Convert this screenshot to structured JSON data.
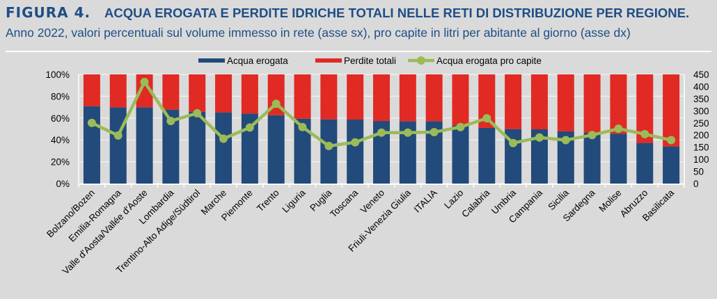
{
  "header": {
    "figure_label": "FIGURA 4.",
    "title": "ACQUA EROGATA E PERDITE IDRICHE TOTALI NELLE RETI DI DISTRIBUZIONE PER REGIONE.",
    "subtitle": "Anno 2022, valori percentuali sul volume immesso in rete (asse sx), pro capite in litri per abitante al giorno (asse dx)"
  },
  "chart_data": {
    "type": "bar",
    "stacked": true,
    "categories": [
      "Bolzano/Bozen",
      "Emilia-Romagna",
      "Valle d'Aosta/Vallée d'Aoste",
      "Lombardia",
      "Trentino-Alto Adige/Südtirol",
      "Marche",
      "Piemonte",
      "Trento",
      "Liguria",
      "Puglia",
      "Toscana",
      "Veneto",
      "Friuli-Venezia Giulia",
      "ITALIA",
      "Lazio",
      "Calabria",
      "Umbria",
      "Campania",
      "Sicilia",
      "Sardegna",
      "Molise",
      "Abruzzo",
      "Basilicata"
    ],
    "series": [
      {
        "name": "Acqua erogata",
        "type": "bar",
        "axis": "left",
        "color": "#224a7a",
        "values": [
          70.9,
          69.9,
          69.9,
          67.7,
          65.8,
          65.2,
          64.1,
          62.6,
          59.4,
          58.8,
          58.6,
          57.3,
          57.1,
          57.1,
          53.3,
          51.0,
          49.9,
          49.7,
          47.8,
          46.7,
          45.6,
          37.2,
          34.0
        ]
      },
      {
        "name": "Perdite totali",
        "type": "bar",
        "axis": "left",
        "color": "#e12a23",
        "values": [
          29.1,
          30.1,
          30.1,
          32.3,
          34.2,
          34.8,
          35.9,
          37.4,
          40.6,
          41.2,
          41.4,
          42.7,
          42.9,
          42.9,
          46.7,
          49.0,
          50.1,
          50.3,
          52.2,
          53.3,
          54.4,
          62.8,
          66.0
        ]
      },
      {
        "name": "Acqua erogata pro capite",
        "type": "line",
        "axis": "right",
        "color": "#9bbb59",
        "values": [
          250,
          198,
          419,
          258,
          290,
          185,
          231,
          329,
          233,
          155,
          170,
          210,
          210,
          212,
          233,
          269,
          167,
          190,
          179,
          200,
          226,
          204,
          179
        ]
      }
    ],
    "y_left": {
      "min": 0,
      "max": 100,
      "ticks": [
        "0%",
        "20%",
        "40%",
        "60%",
        "80%",
        "100%"
      ]
    },
    "y_right": {
      "min": 0,
      "max": 450,
      "ticks": [
        "0",
        "50",
        "100",
        "150",
        "200",
        "250",
        "300",
        "350",
        "400",
        "450"
      ]
    },
    "grid": true,
    "legend": "top"
  }
}
